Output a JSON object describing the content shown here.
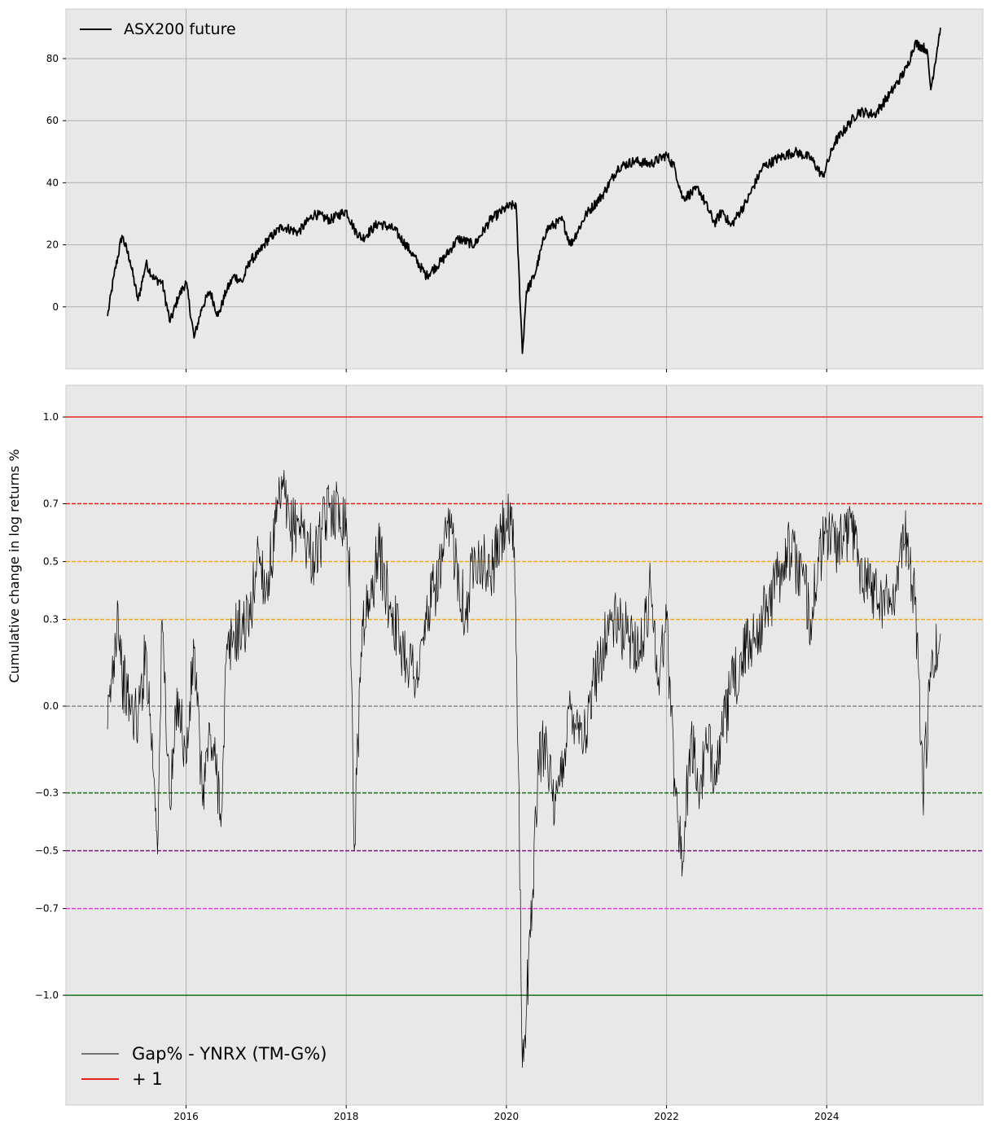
{
  "chart_data": [
    {
      "type": "line",
      "title": "",
      "xlabel": "",
      "ylabel": "",
      "xlim": [
        2014.5,
        2025.95
      ],
      "ylim": [
        -20,
        96
      ],
      "grid": true,
      "legend_position": "upper-left",
      "x_ticks": [
        2016,
        2018,
        2020,
        2022,
        2024
      ],
      "x_ticks_labeled": false,
      "y_ticks": [
        0,
        20,
        40,
        60,
        80
      ],
      "series": [
        {
          "name": "ASX200 future",
          "color": "#000000",
          "x": [
            2015.02,
            2015.1,
            2015.2,
            2015.3,
            2015.4,
            2015.5,
            2015.6,
            2015.7,
            2015.8,
            2015.9,
            2016.0,
            2016.1,
            2016.2,
            2016.3,
            2016.4,
            2016.5,
            2016.6,
            2016.7,
            2016.8,
            2016.9,
            2017.0,
            2017.2,
            2017.4,
            2017.6,
            2017.8,
            2018.0,
            2018.1,
            2018.2,
            2018.4,
            2018.6,
            2018.8,
            2019.0,
            2019.2,
            2019.4,
            2019.6,
            2019.8,
            2020.0,
            2020.12,
            2020.2,
            2020.25,
            2020.35,
            2020.5,
            2020.7,
            2020.8,
            2021.0,
            2021.2,
            2021.4,
            2021.6,
            2021.8,
            2022.0,
            2022.1,
            2022.2,
            2022.4,
            2022.6,
            2022.7,
            2022.8,
            2023.0,
            2023.2,
            2023.4,
            2023.6,
            2023.8,
            2023.95,
            2024.1,
            2024.4,
            2024.6,
            2024.8,
            2025.0,
            2025.1,
            2025.25,
            2025.3,
            2025.42
          ],
          "y": [
            -3,
            10,
            23,
            15,
            2,
            14,
            9,
            8,
            -5,
            3,
            8,
            -10,
            0,
            5,
            -3,
            5,
            10,
            8,
            15,
            17,
            21,
            26,
            24,
            30,
            28,
            31,
            25,
            22,
            27,
            25,
            18,
            10,
            15,
            22,
            20,
            28,
            32,
            33,
            -15,
            5,
            10,
            25,
            28,
            20,
            30,
            36,
            45,
            47,
            46,
            49,
            45,
            35,
            38,
            27,
            31,
            26,
            34,
            45,
            48,
            50,
            48,
            42,
            53,
            63,
            62,
            69,
            77,
            85,
            83,
            70,
            90
          ]
        }
      ]
    },
    {
      "type": "line",
      "title": "",
      "xlabel": "",
      "ylabel": "Cumulative change in log returns %",
      "xlim": [
        2014.5,
        2025.95
      ],
      "ylim": [
        -1.38,
        1.11
      ],
      "grid": true,
      "legend_position": "lower-left",
      "x_ticks": [
        2016,
        2018,
        2020,
        2022,
        2024
      ],
      "x_tick_labels": [
        "2016",
        "2018",
        "2020",
        "2022",
        "2024"
      ],
      "y_ticks": [
        1.0,
        0.7,
        0.5,
        0.3,
        0.0,
        -0.3,
        -0.5,
        -0.7,
        -1.0
      ],
      "y_tick_labels": [
        "1.0",
        "0.7",
        "0.5",
        "0.3",
        "0.0",
        "−0.3",
        "−0.5",
        "−0.7",
        "−1.0"
      ],
      "reference_lines": [
        {
          "y": 1.0,
          "color": "#e8221b",
          "style": "solid",
          "legend": "+ 1"
        },
        {
          "y": 0.7,
          "color": "#e8221b",
          "style": "dashed"
        },
        {
          "y": 0.5,
          "color": "#f5a623",
          "style": "dashed"
        },
        {
          "y": 0.3,
          "color": "#f5a623",
          "style": "dashed"
        },
        {
          "y": 0.0,
          "color": "#8a8a8a",
          "style": "dashed"
        },
        {
          "y": -0.3,
          "color": "#1a6e1a",
          "style": "dashed"
        },
        {
          "y": -0.5,
          "color": "#7a1f7a",
          "style": "dashed"
        },
        {
          "y": -0.7,
          "color": "#e040e0",
          "style": "dashed"
        },
        {
          "y": -1.0,
          "color": "#1a6e1a",
          "style": "solid"
        }
      ],
      "series": [
        {
          "name": "Gap% - YNRX (TM-G%)",
          "color": "#000000",
          "x": [
            2015.02,
            2015.15,
            2015.2,
            2015.3,
            2015.4,
            2015.5,
            2015.6,
            2015.65,
            2015.7,
            2015.8,
            2015.9,
            2016.0,
            2016.1,
            2016.2,
            2016.3,
            2016.45,
            2016.5,
            2016.6,
            2016.8,
            2016.9,
            2017.0,
            2017.2,
            2017.3,
            2017.4,
            2017.6,
            2017.8,
            2018.0,
            2018.05,
            2018.1,
            2018.2,
            2018.3,
            2018.4,
            2018.5,
            2018.7,
            2018.9,
            2019.0,
            2019.2,
            2019.3,
            2019.5,
            2019.6,
            2019.8,
            2020.0,
            2020.1,
            2020.15,
            2020.2,
            2020.3,
            2020.4,
            2020.5,
            2020.6,
            2020.8,
            2021.0,
            2021.1,
            2021.3,
            2021.5,
            2021.7,
            2021.8,
            2021.9,
            2022.0,
            2022.1,
            2022.2,
            2022.3,
            2022.4,
            2022.5,
            2022.6,
            2022.7,
            2022.8,
            2023.0,
            2023.2,
            2023.4,
            2023.5,
            2023.7,
            2023.8,
            2023.9,
            2024.0,
            2024.2,
            2024.3,
            2024.4,
            2024.6,
            2024.8,
            2024.9,
            2025.0,
            2025.1,
            2025.15,
            2025.2,
            2025.3,
            2025.42
          ],
          "y": [
            -0.08,
            0.35,
            0.1,
            0.0,
            -0.05,
            0.2,
            -0.25,
            -0.45,
            0.3,
            -0.35,
            0.05,
            -0.2,
            0.2,
            -0.3,
            -0.1,
            -0.35,
            0.15,
            0.25,
            0.3,
            0.55,
            0.4,
            0.75,
            0.6,
            0.65,
            0.5,
            0.7,
            0.65,
            0.4,
            -0.5,
            0.3,
            0.35,
            0.55,
            0.4,
            0.2,
            0.1,
            0.3,
            0.5,
            0.62,
            0.3,
            0.55,
            0.45,
            0.65,
            0.55,
            -0.2,
            -1.25,
            -0.8,
            -0.2,
            -0.1,
            -0.4,
            0.0,
            -0.1,
            0.1,
            0.3,
            0.25,
            0.2,
            0.42,
            0.1,
            0.3,
            -0.25,
            -0.55,
            -0.1,
            -0.3,
            -0.15,
            -0.2,
            -0.1,
            0.05,
            0.2,
            0.3,
            0.45,
            0.55,
            0.45,
            0.3,
            0.5,
            0.6,
            0.55,
            0.65,
            0.5,
            0.4,
            0.35,
            0.5,
            0.6,
            0.35,
            0.1,
            -0.3,
            0.1,
            0.25
          ]
        }
      ]
    }
  ]
}
